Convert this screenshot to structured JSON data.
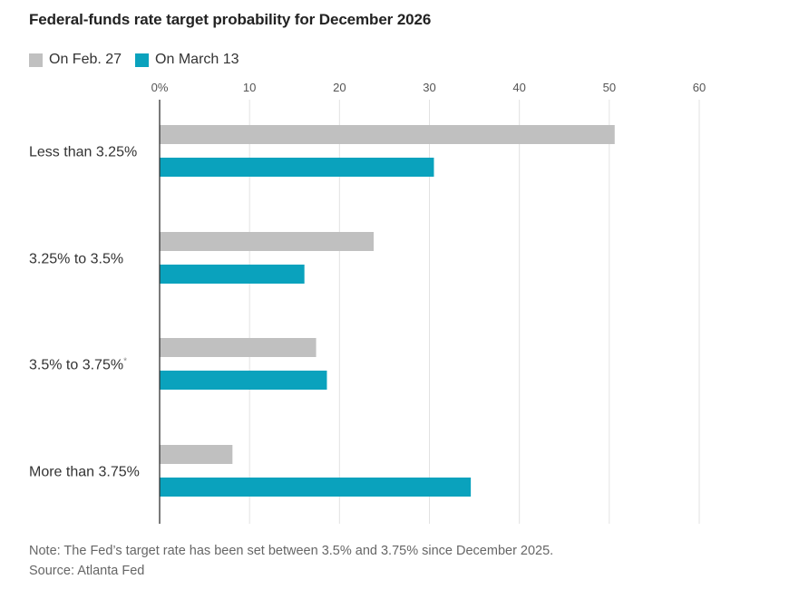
{
  "chart_data": {
    "type": "bar",
    "orientation": "horizontal",
    "title": "Federal-funds rate target probability for December 2026",
    "categories": [
      "Less than 3.25%",
      "3.25% to 3.5%",
      "3.5% to 3.75%",
      "More than 3.75%"
    ],
    "category_markers": [
      "",
      "",
      "*",
      ""
    ],
    "series": [
      {
        "name": "On Feb. 27",
        "color": "#c0c0c0",
        "values": [
          50.6,
          23.8,
          17.4,
          8.1
        ]
      },
      {
        "name": "On March 13",
        "color": "#0aa2bd",
        "values": [
          30.5,
          16.1,
          18.6,
          34.6
        ]
      }
    ],
    "xlim": [
      0,
      60
    ],
    "xticks": [
      0,
      10,
      20,
      30,
      40,
      50,
      60
    ],
    "xtick_labels": [
      "0%",
      "10",
      "20",
      "30",
      "40",
      "50",
      "60"
    ],
    "grid": true,
    "legend_position": "top-left"
  },
  "note": "Note: The Fed’s target rate has been set between 3.5% and 3.75% since December 2025.",
  "source": "Source: Atlanta Fed"
}
